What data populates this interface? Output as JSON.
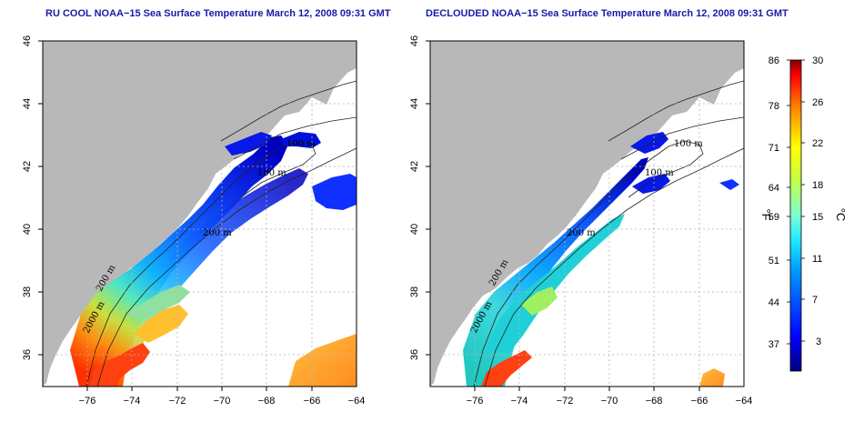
{
  "titles": {
    "left": "RU COOL NOAA−15 Sea Surface Temperature March 12, 2008 09:31 GMT",
    "right": "DECLOUDED NOAA−15 Sea Surface Temperature March 12, 2008 09:31 GMT"
  },
  "axes": {
    "x_ticks": [
      "−76",
      "−74",
      "−72",
      "−70",
      "−68",
      "−66",
      "−64"
    ],
    "y_ticks": [
      "46",
      "44",
      "42",
      "40",
      "38",
      "36"
    ],
    "lon_range": [
      -77,
      -63
    ],
    "lat_range": [
      35,
      46
    ]
  },
  "contour_labels": [
    "100 m",
    "100 m",
    "200 m",
    "200 m",
    "2000 m"
  ],
  "colorbar": {
    "fahrenheit_unit": "°F",
    "celsius_unit": "°C",
    "fahrenheit_ticks": [
      "86",
      "78",
      "71",
      "64",
      "59",
      "51",
      "44",
      "37"
    ],
    "celsius_ticks": [
      "30",
      "26",
      "22",
      "18",
      "15",
      "11",
      "7",
      "3"
    ],
    "colors": [
      "#00007f",
      "#0000ff",
      "#007fff",
      "#00e5ff",
      "#7fffff",
      "#7fff7f",
      "#ffff00",
      "#ff7f00",
      "#ff0000",
      "#7f0000"
    ]
  },
  "colors": {
    "land": "#b8b8b8",
    "title": "#1a1aa8",
    "grid": "#b4b4b4"
  }
}
